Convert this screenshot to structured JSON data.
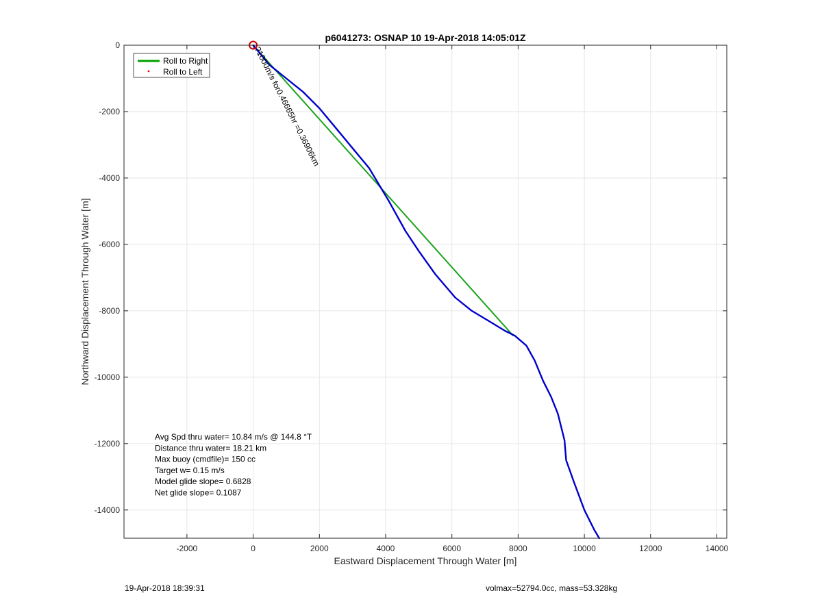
{
  "chart_data": {
    "type": "line",
    "title": "p6041273: OSNAP 10 19-Apr-2018 14:05:01Z",
    "xlabel": "Eastward Displacement Through Water [m]",
    "ylabel": "Northward Displacement Through Water [m]",
    "xlim": [
      -3900,
      14300
    ],
    "ylim": [
      -14850,
      0
    ],
    "xticks": [
      -2000,
      0,
      2000,
      4000,
      6000,
      8000,
      10000,
      12000,
      14000
    ],
    "yticks": [
      0,
      -2000,
      -4000,
      -6000,
      -8000,
      -10000,
      -12000,
      -14000
    ],
    "xtick_labels": [
      "-2000",
      "0",
      "2000",
      "4000",
      "6000",
      "8000",
      "10000",
      "12000",
      "14000"
    ],
    "ytick_labels": [
      "0",
      "-2000",
      "-4000",
      "-6000",
      "-8000",
      "-10000",
      "-12000",
      "-14000"
    ],
    "grid": true,
    "legend_position": "top-left",
    "legend": [
      {
        "name": "Roll to Right",
        "color": "#00a000",
        "style": "line"
      },
      {
        "name": "Roll to Left",
        "color": "#ff0000",
        "style": "dot"
      }
    ],
    "series": [
      {
        "name": "Roll to Right",
        "color": "#1aa31a",
        "x": [
          0,
          7850
        ],
        "y": [
          0,
          -8750
        ]
      },
      {
        "color": "#0000cc",
        "x": [
          0,
          500,
          1000,
          1500,
          2000,
          2500,
          3000,
          3500,
          4100,
          4600,
          5000,
          5500,
          6100,
          6600,
          7100,
          7600,
          7900,
          8250,
          8500,
          8750,
          9000,
          9200,
          9400,
          9450,
          9700,
          10000,
          10300,
          10450
        ],
        "y": [
          0,
          -600,
          -1000,
          -1400,
          -1900,
          -2500,
          -3100,
          -3700,
          -4700,
          -5600,
          -6200,
          -6900,
          -7600,
          -8000,
          -8300,
          -8600,
          -8750,
          -9050,
          -9500,
          -10100,
          -10600,
          -11100,
          -11900,
          -12500,
          -13200,
          -14000,
          -14600,
          -14850
        ]
      }
    ],
    "start_marker": {
      "x": 0,
      "y": 0,
      "color": "#d40000"
    },
    "current_annotation": {
      "text": "?1000m/s for0.46665hr =0.36906km",
      "x": 0,
      "y": -100,
      "rotation_deg": 63
    },
    "stats": [
      "Avg Spd thru water= 10.84 m/s @ 144.8 °T",
      "Distance thru water= 18.21 km",
      "Max buoy (cmdfile)= 150 cc",
      "Target w= 0.15 m/s",
      "Model glide slope= 0.6828",
      "Net glide slope= 0.1087"
    ]
  },
  "footer": {
    "timestamp": "19-Apr-2018 18:39:31",
    "vol_mass": "volmax=52794.0cc, mass=53.328kg"
  }
}
